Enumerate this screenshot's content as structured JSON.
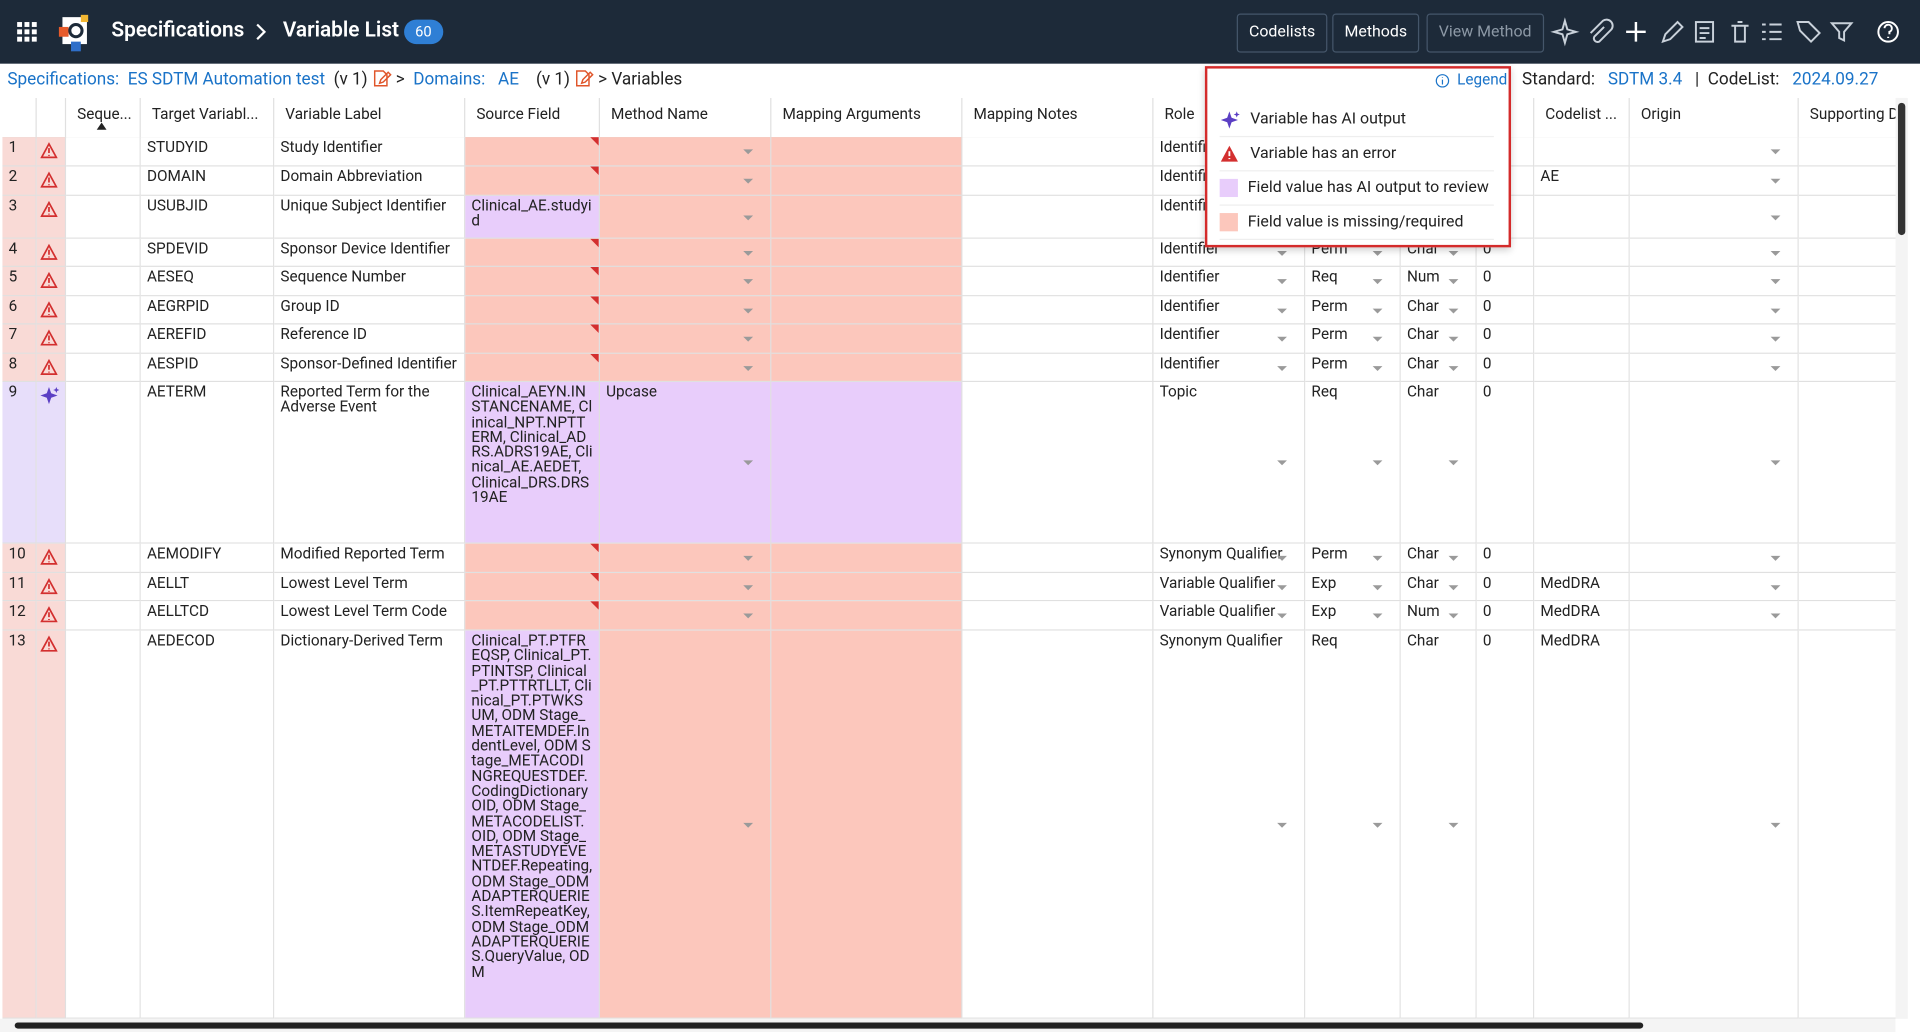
{
  "header": {
    "app_title": "Specifications",
    "page_title": "Variable List",
    "count": "60",
    "buttons": [
      "Codelists",
      "Methods",
      "View Method"
    ]
  },
  "breadcrumb": {
    "root_label": "Specifications:",
    "spec": "ES SDTM Automation test",
    "spec_version": "(v 1)",
    "separator": ">",
    "domain_label": "Domains:",
    "domain": "AE",
    "domain_version": "(v 1)",
    "current": "> Variables"
  },
  "legend": {
    "label": "Legend",
    "items": [
      {
        "icon": "ai",
        "text": "Variable has AI output"
      },
      {
        "icon": "error",
        "text": "Variable has an error"
      },
      {
        "icon": "ai-fill",
        "text": "Field value has AI output to review"
      },
      {
        "icon": "missing-fill",
        "text": "Field value is missing/required"
      }
    ]
  },
  "standard": {
    "label": "Standard:",
    "value": "SDTM 3.4",
    "divider": "|",
    "codelist_label": "CodeList:",
    "codelist_value": "2024.09.27"
  },
  "table": {
    "columns": [
      null,
      null,
      "Seque...",
      "Target Variabl...",
      "Variable Label",
      "Source Field",
      "Method Name",
      "Mapping Arguments",
      "Mapping Notes",
      "Role",
      null,
      null,
      null,
      "Codelist ...",
      "Origin",
      "Supporting D"
    ],
    "rows": [
      {
        "status": "error",
        "fills": {
          "5": "missing",
          "6": "missing",
          "7": "missing"
        },
        "cells": [
          "1",
          null,
          null,
          "STUDYID",
          "Study Identifier",
          null,
          null,
          null,
          null,
          "Identifier",
          null,
          null,
          null,
          null,
          null,
          null
        ]
      },
      {
        "status": "error",
        "fills": {
          "5": "missing",
          "6": "missing",
          "7": "missing"
        },
        "cells": [
          "2",
          null,
          null,
          "DOMAIN",
          "Domain Abbreviation",
          null,
          null,
          null,
          null,
          "Identifier",
          null,
          null,
          null,
          "AE",
          null,
          null
        ]
      },
      {
        "status": "error",
        "fills": {
          "5": "ai",
          "6": "missing",
          "7": "missing"
        },
        "cells": [
          "3",
          null,
          null,
          "USUBJID",
          "Unique Subject Identifier",
          "Clinical_AE.studyid",
          null,
          null,
          null,
          "Identifier",
          null,
          null,
          null,
          null,
          null,
          null
        ]
      },
      {
        "status": "error",
        "fills": {
          "5": "missing",
          "6": "missing",
          "7": "missing"
        },
        "cells": [
          "4",
          null,
          null,
          "SPDEVID",
          "Sponsor Device Identifier",
          null,
          null,
          null,
          null,
          "Identifier",
          "Perm",
          "Char",
          "0",
          null,
          null,
          null
        ]
      },
      {
        "status": "error",
        "fills": {
          "5": "missing",
          "6": "missing",
          "7": "missing"
        },
        "cells": [
          "5",
          null,
          null,
          "AESEQ",
          "Sequence Number",
          null,
          null,
          null,
          null,
          "Identifier",
          "Req",
          "Num",
          "0",
          null,
          null,
          null
        ]
      },
      {
        "status": "error",
        "fills": {
          "5": "missing",
          "6": "missing",
          "7": "missing"
        },
        "cells": [
          "6",
          null,
          null,
          "AEGRPID",
          "Group ID",
          null,
          null,
          null,
          null,
          "Identifier",
          "Perm",
          "Char",
          "0",
          null,
          null,
          null
        ]
      },
      {
        "status": "error",
        "fills": {
          "5": "missing",
          "6": "missing",
          "7": "missing"
        },
        "cells": [
          "7",
          null,
          null,
          "AEREFID",
          "Reference ID",
          null,
          null,
          null,
          null,
          "Identifier",
          "Perm",
          "Char",
          "0",
          null,
          null,
          null
        ]
      },
      {
        "status": "error",
        "fills": {
          "5": "missing",
          "6": "missing",
          "7": "missing"
        },
        "cells": [
          "8",
          null,
          null,
          "AESPID",
          "Sponsor-Defined Identifier",
          null,
          null,
          null,
          null,
          "Identifier",
          "Perm",
          "Char",
          "0",
          null,
          null,
          null
        ]
      },
      {
        "status": "ai",
        "fills": {
          "5": "ai",
          "6": "ai",
          "7": "ai"
        },
        "cells": [
          "9",
          null,
          null,
          "AETERM",
          "Reported Term for the Adverse Event",
          "Clinical_AEYN.INSTANCENAME, Clinical_NPT.NPTTERM, Clinical_ADRS.ADRS19AE, Clinical_AE.AEDET, Clinical_DRS.DRS19AE",
          "Upcase",
          null,
          null,
          "Topic",
          "Req",
          "Char",
          "0",
          null,
          null,
          null
        ]
      },
      {
        "status": "error",
        "fills": {
          "5": "missing",
          "6": "missing",
          "7": "missing"
        },
        "cells": [
          "10",
          null,
          null,
          "AEMODIFY",
          "Modified Reported Term",
          null,
          null,
          null,
          null,
          "Synonym Qualifier",
          "Perm",
          "Char",
          "0",
          null,
          null,
          null
        ]
      },
      {
        "status": "error",
        "fills": {
          "5": "missing",
          "6": "missing",
          "7": "missing"
        },
        "cells": [
          "11",
          null,
          null,
          "AELLT",
          "Lowest Level Term",
          null,
          null,
          null,
          null,
          "Variable Qualifier",
          "Exp",
          "Char",
          "0",
          "MedDRA",
          null,
          null
        ]
      },
      {
        "status": "error",
        "fills": {
          "5": "missing",
          "6": "missing",
          "7": "missing"
        },
        "cells": [
          "12",
          null,
          null,
          "AELLTCD",
          "Lowest Level Term Code",
          null,
          null,
          null,
          null,
          "Variable Qualifier",
          "Exp",
          "Num",
          "0",
          "MedDRA",
          null,
          null
        ]
      },
      {
        "status": "error",
        "fills": {
          "5": "ai",
          "6": "missing",
          "7": "missing"
        },
        "cells": [
          "13",
          null,
          null,
          "AEDECOD",
          "Dictionary-Derived Term",
          "Clinical_PT.PTFREQSP, Clinical_PT.PTINTSP, Clinical_PT.PTTRTLLT, Clinical_PT.PTWKSUM, ODM Stage_METAITEMDEF.IndentLevel, ODM Stage_METACODINGREQUESTDEF.CodingDictionaryOID, ODM Stage_METACODELIST.OID, ODM Stage_METASTUDYEVENTDEF.Repeating, ODM Stage_ODMADAPTERQUERIES.ItemRepeatKey, ODM Stage_ODMADAPTERQUERIES.QueryValue, ODM",
          null,
          null,
          null,
          "Synonym Qualifier",
          "Req",
          "Char",
          "0",
          "MedDRA",
          null,
          null
        ]
      }
    ]
  }
}
